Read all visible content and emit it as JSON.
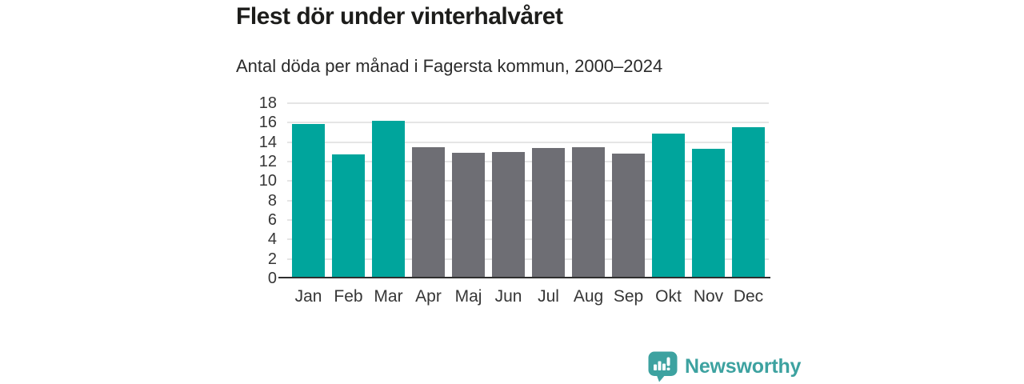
{
  "chart_data": {
    "type": "bar",
    "title": "Flest dör under vinterhalvåret",
    "subtitle": "Antal döda per månad i Fagersta kommun, 2000–2024",
    "xlabel": "",
    "ylabel": "",
    "categories": [
      "Jan",
      "Feb",
      "Mar",
      "Apr",
      "Maj",
      "Jun",
      "Jul",
      "Aug",
      "Sep",
      "Okt",
      "Nov",
      "Dec"
    ],
    "values": [
      15.9,
      12.7,
      16.2,
      13.5,
      12.9,
      13.0,
      13.4,
      13.5,
      12.8,
      14.9,
      13.3,
      15.5
    ],
    "highlighted": [
      true,
      true,
      true,
      false,
      false,
      false,
      false,
      false,
      false,
      true,
      true,
      true
    ],
    "ylim": [
      0,
      18
    ],
    "ytick_step": 2,
    "grid": true,
    "legend": "none",
    "colors": {
      "highlight": "#00A59C",
      "neutral": "#6E6E74",
      "gridline": "#E5E5E5",
      "axis": "#2F2F2F",
      "tick_text": "#363636"
    }
  },
  "footer": {
    "brand": "Newsworthy",
    "brand_color": "#3DA2A0",
    "logo_icon": "speech-bubble-bar-chart-icon"
  }
}
